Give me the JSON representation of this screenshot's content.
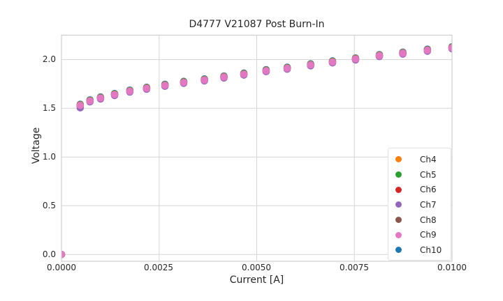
{
  "figure": {
    "background_color": "#ffffff",
    "text_color": "#262626",
    "grid_color": "#d6d6d6",
    "spine_color": "#cfcfcf"
  },
  "chart_data": {
    "type": "scatter",
    "title": "D4777 V21087 Post Burn-In",
    "xlabel": "Current [A]",
    "ylabel": "Voltage",
    "xlim": [
      0.0,
      0.01
    ],
    "ylim": [
      -0.07,
      2.25
    ],
    "grid": true,
    "legend_position": "lower right",
    "marker_diameter_px": 10.5,
    "xticks": [
      0.0,
      0.0025,
      0.005,
      0.0075,
      0.01
    ],
    "xtick_labels": [
      "0.0000",
      "0.0025",
      "0.0050",
      "0.0075",
      "0.0100"
    ],
    "yticks": [
      0.0,
      0.5,
      1.0,
      1.5,
      2.0
    ],
    "ytick_labels_top_down": [
      "2.0",
      "1.5",
      "1.0",
      "0.5",
      "0.0"
    ],
    "x": [
      0.0,
      0.00048,
      0.00073,
      0.001,
      0.00136,
      0.00175,
      0.00218,
      0.00265,
      0.00313,
      0.00366,
      0.00416,
      0.00467,
      0.00524,
      0.00578,
      0.00638,
      0.00694,
      0.00753,
      0.00814,
      0.00874,
      0.00937,
      0.01
    ],
    "series": [
      {
        "name": "Ch4",
        "color": "#ff7f0e",
        "y": [
          0.0,
          1.536,
          1.581,
          1.611,
          1.646,
          1.681,
          1.711,
          1.741,
          1.771,
          1.796,
          1.826,
          1.856,
          1.891,
          1.916,
          1.951,
          1.981,
          2.011,
          2.046,
          2.071,
          2.101,
          2.126
        ]
      },
      {
        "name": "Ch5",
        "color": "#2ca02c",
        "y": [
          0.0,
          1.532,
          1.577,
          1.607,
          1.642,
          1.677,
          1.707,
          1.737,
          1.767,
          1.792,
          1.822,
          1.852,
          1.887,
          1.912,
          1.947,
          1.977,
          2.007,
          2.042,
          2.067,
          2.097,
          2.122
        ]
      },
      {
        "name": "Ch6",
        "color": "#d62728",
        "y": [
          0.0,
          1.525,
          1.57,
          1.6,
          1.635,
          1.67,
          1.7,
          1.73,
          1.76,
          1.785,
          1.815,
          1.845,
          1.88,
          1.905,
          1.94,
          1.97,
          2.0,
          2.035,
          2.06,
          2.09,
          2.115
        ]
      },
      {
        "name": "Ch7",
        "color": "#9467bd",
        "y": [
          0.0,
          1.505,
          1.566,
          1.596,
          1.631,
          1.666,
          1.696,
          1.726,
          1.756,
          1.781,
          1.811,
          1.841,
          1.876,
          1.901,
          1.936,
          1.966,
          1.996,
          2.031,
          2.056,
          2.086,
          2.111
        ]
      },
      {
        "name": "Ch8",
        "color": "#8c564b",
        "y": [
          0.0,
          1.533,
          1.578,
          1.608,
          1.643,
          1.678,
          1.708,
          1.738,
          1.768,
          1.793,
          1.823,
          1.853,
          1.888,
          1.913,
          1.948,
          1.978,
          2.008,
          2.043,
          2.068,
          2.098,
          2.123
        ]
      },
      {
        "name": "Ch9",
        "color": "#e377c2",
        "y": [
          0.0,
          1.53,
          1.575,
          1.605,
          1.64,
          1.675,
          1.705,
          1.735,
          1.765,
          1.79,
          1.82,
          1.85,
          1.885,
          1.91,
          1.945,
          1.975,
          2.005,
          2.04,
          2.065,
          2.095,
          2.12
        ]
      },
      {
        "name": "Ch10",
        "color": "#1f77b4",
        "y": [
          0.0,
          1.541,
          1.586,
          1.616,
          1.651,
          1.686,
          1.716,
          1.746,
          1.776,
          1.801,
          1.831,
          1.861,
          1.896,
          1.921,
          1.956,
          1.986,
          2.016,
          2.051,
          2.076,
          2.106,
          2.131
        ]
      }
    ],
    "draw_order": [
      "Ch10",
      "Ch4",
      "Ch8",
      "Ch5",
      "Ch6",
      "Ch7",
      "Ch9"
    ]
  }
}
